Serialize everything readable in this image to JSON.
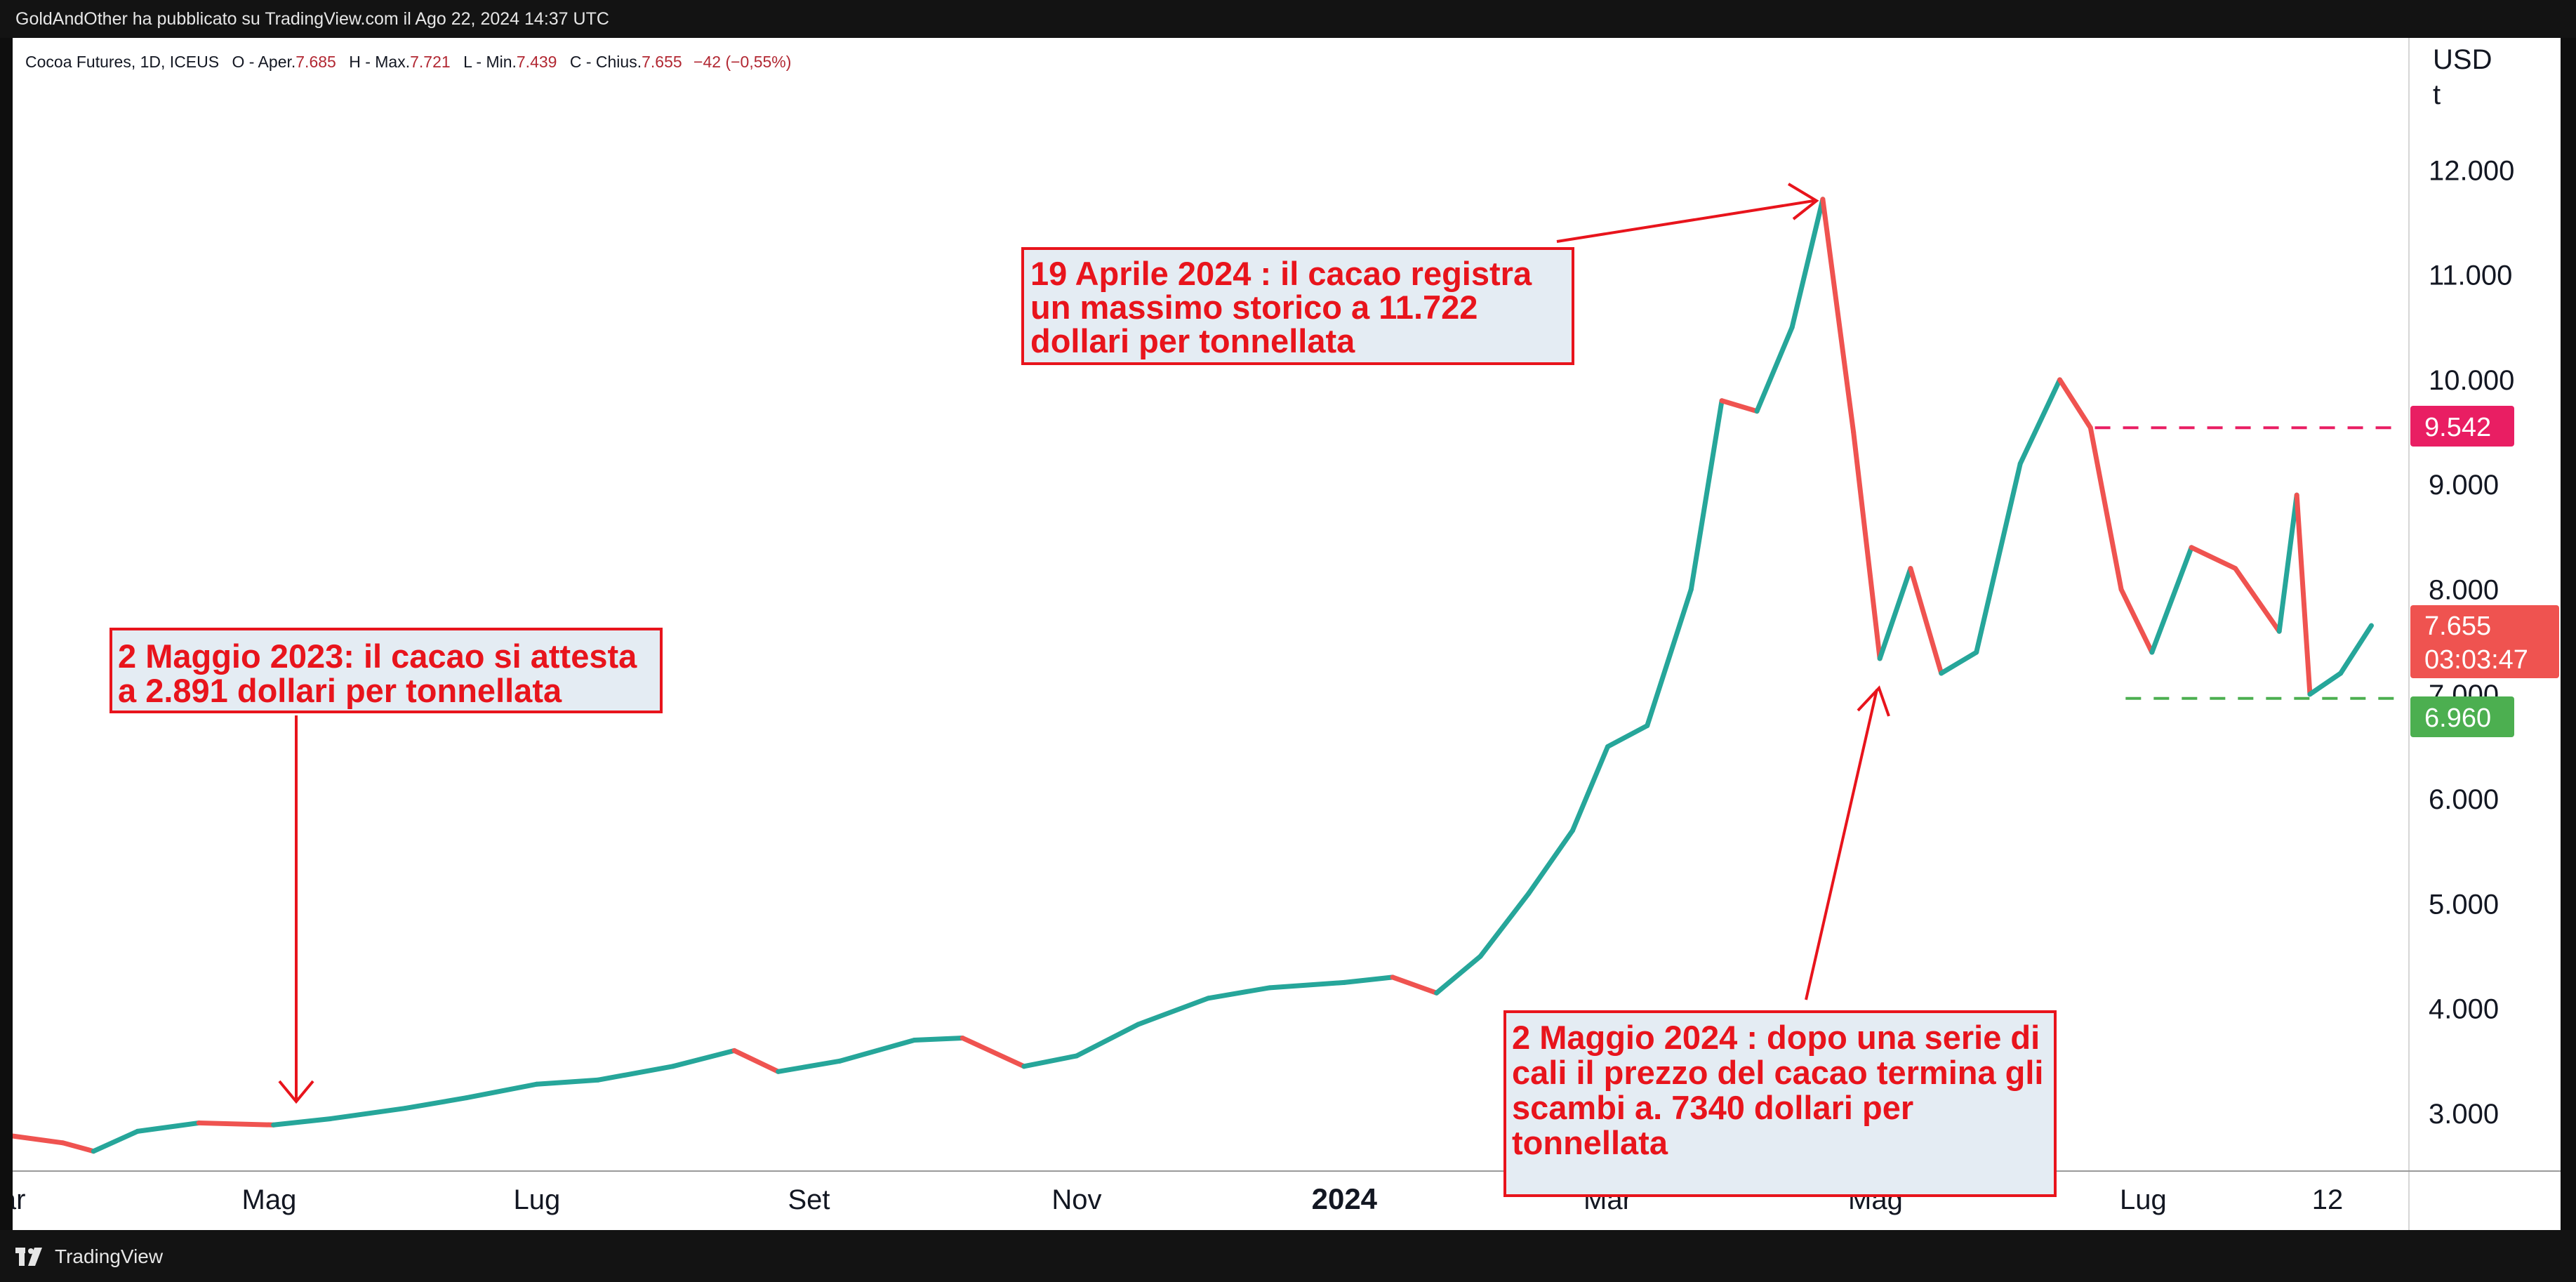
{
  "header": {
    "publisher_line": "GoldAndOther ha pubblicato su TradingView.com il Ago 22, 2024 14:37 UTC"
  },
  "legend": {
    "symbol": "Cocoa Futures, 1D, ICEUS",
    "open_label": "O - Aper.",
    "open_value": "7.685",
    "high_label": "H - Max.",
    "high_value": "7.721",
    "low_label": "L - Min.",
    "low_value": "7.439",
    "close_label": "C - Chius.",
    "close_value": "7.655",
    "change": "−42 (−0,55%)"
  },
  "y_axis": {
    "unit_line1": "USD",
    "unit_line2": "t"
  },
  "annotations": {
    "may2023": [
      "2 Maggio 2023: il cacao si attesta",
      "a  2.891 dollari per tonnellata"
    ],
    "apr2024": [
      "19 Aprile 2024 : il cacao registra",
      "un massimo storico a 11.722",
      "dollari per tonnellata"
    ],
    "may2024": [
      "2 Maggio 2024 : dopo una serie di",
      "cali il prezzo del cacao termina gli",
      "scambi a. 7340 dollari per",
      "tonnellata"
    ]
  },
  "price_tags": {
    "resistance": "9.542",
    "last": "7.655",
    "countdown": "03:03:47",
    "support": "6.960"
  },
  "footer": {
    "brand": "TradingView"
  },
  "colors": {
    "up_candle": "#26a69a",
    "down_candle": "#ef5350",
    "annotation_red": "#e8141c",
    "resistance_tag": "#e91e63",
    "last_price_tag": "#ef5350",
    "support_tag": "#4caf50"
  },
  "chart_data": {
    "type": "line",
    "title": "Cocoa Futures, 1D, ICEUS",
    "ylabel": "USD / t",
    "ylim": [
      2400,
      12800
    ],
    "y_ticks": [
      {
        "value": 3000,
        "label": "3.000"
      },
      {
        "value": 4000,
        "label": "4.000"
      },
      {
        "value": 5000,
        "label": "5.000"
      },
      {
        "value": 6000,
        "label": "6.000"
      },
      {
        "value": 7000,
        "label": "7.000"
      },
      {
        "value": 8000,
        "label": "8.000"
      },
      {
        "value": 9000,
        "label": "9.000"
      },
      {
        "value": 10000,
        "label": "10.000"
      },
      {
        "value": 11000,
        "label": "11.000"
      },
      {
        "value": 12000,
        "label": "12.000"
      }
    ],
    "x_ticks": [
      {
        "date": "2023-03-01",
        "label": "Mar",
        "bold": false
      },
      {
        "date": "2023-05-01",
        "label": "Mag",
        "bold": false
      },
      {
        "date": "2023-07-01",
        "label": "Lug",
        "bold": false
      },
      {
        "date": "2023-09-01",
        "label": "Set",
        "bold": false
      },
      {
        "date": "2023-11-01",
        "label": "Nov",
        "bold": false
      },
      {
        "date": "2024-01-01",
        "label": "2024",
        "bold": true
      },
      {
        "date": "2024-03-01",
        "label": "Mar",
        "bold": false
      },
      {
        "date": "2024-05-01",
        "label": "Mag",
        "bold": false
      },
      {
        "date": "2024-07-01",
        "label": "Lug",
        "bold": false
      },
      {
        "date": "2024-08-12",
        "label": "12",
        "bold": false
      }
    ],
    "x_range": [
      "2023-03-01",
      "2024-08-28"
    ],
    "horizontal_levels": [
      {
        "value": 9542,
        "style": "dashed",
        "color": "#e91e63",
        "from_date": "2024-06-20"
      },
      {
        "value": 6960,
        "style": "dashed",
        "color": "#4caf50",
        "from_date": "2024-06-27"
      }
    ],
    "series": [
      {
        "points": [
          [
            "2023-03-01",
            2800
          ],
          [
            "2023-03-15",
            2720
          ],
          [
            "2023-03-22",
            2640
          ],
          [
            "2023-04-01",
            2830
          ],
          [
            "2023-04-15",
            2910
          ],
          [
            "2023-05-02",
            2891
          ],
          [
            "2023-05-15",
            2950
          ],
          [
            "2023-06-01",
            3050
          ],
          [
            "2023-06-15",
            3150
          ],
          [
            "2023-07-01",
            3280
          ],
          [
            "2023-07-15",
            3320
          ],
          [
            "2023-08-01",
            3450
          ],
          [
            "2023-08-15",
            3600
          ],
          [
            "2023-08-25",
            3400
          ],
          [
            "2023-09-08",
            3500
          ],
          [
            "2023-09-25",
            3700
          ],
          [
            "2023-10-06",
            3720
          ],
          [
            "2023-10-20",
            3450
          ],
          [
            "2023-11-01",
            3550
          ],
          [
            "2023-11-15",
            3850
          ],
          [
            "2023-12-01",
            4100
          ],
          [
            "2023-12-15",
            4200
          ],
          [
            "2024-01-01",
            4250
          ],
          [
            "2024-01-12",
            4300
          ],
          [
            "2024-01-22",
            4150
          ],
          [
            "2024-02-01",
            4500
          ],
          [
            "2024-02-12",
            5100
          ],
          [
            "2024-02-22",
            5700
          ],
          [
            "2024-03-01",
            6500
          ],
          [
            "2024-03-10",
            6700
          ],
          [
            "2024-03-20",
            8000
          ],
          [
            "2024-03-27",
            9800
          ],
          [
            "2024-04-04",
            9700
          ],
          [
            "2024-04-12",
            10500
          ],
          [
            "2024-04-19",
            11722
          ],
          [
            "2024-04-26",
            9500
          ],
          [
            "2024-05-02",
            7340
          ],
          [
            "2024-05-09",
            8200
          ],
          [
            "2024-05-16",
            7200
          ],
          [
            "2024-05-24",
            7400
          ],
          [
            "2024-06-03",
            9200
          ],
          [
            "2024-06-12",
            10000
          ],
          [
            "2024-06-19",
            9542
          ],
          [
            "2024-06-26",
            8000
          ],
          [
            "2024-07-03",
            7400
          ],
          [
            "2024-07-12",
            8400
          ],
          [
            "2024-07-22",
            8200
          ],
          [
            "2024-08-01",
            7600
          ],
          [
            "2024-08-05",
            8900
          ],
          [
            "2024-08-08",
            7000
          ],
          [
            "2024-08-15",
            7200
          ],
          [
            "2024-08-22",
            7655
          ]
        ]
      }
    ]
  }
}
